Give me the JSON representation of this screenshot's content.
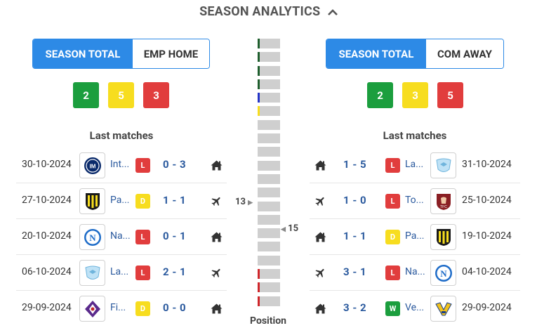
{
  "header": {
    "title": "SEASON ANALYTICS",
    "chevron_icon": "chevron-up-icon"
  },
  "home": {
    "toggle": {
      "active": "SEASON TOTAL",
      "inactive": "EMP HOME"
    },
    "stats": {
      "wins": "2",
      "draws": "5",
      "losses": "3"
    },
    "last_matches_title": "Last matches",
    "matches": [
      {
        "date": "30-10-2024",
        "team": "Int...",
        "logo": "inter-logo",
        "result": "L",
        "score": "0 - 3",
        "venue": "home-icon"
      },
      {
        "date": "27-10-2024",
        "team": "Pa...",
        "logo": "parma-logo",
        "result": "D",
        "score": "1 - 1",
        "venue": "plane-icon"
      },
      {
        "date": "20-10-2024",
        "team": "Na...",
        "logo": "napoli-logo",
        "result": "L",
        "score": "0 - 1",
        "venue": "home-icon"
      },
      {
        "date": "06-10-2024",
        "team": "La...",
        "logo": "lazio-logo",
        "result": "L",
        "score": "2 - 1",
        "venue": "plane-icon"
      },
      {
        "date": "29-09-2024",
        "team": "Fi...",
        "logo": "fiorentina-logo",
        "result": "D",
        "score": "0 - 0",
        "venue": "home-icon"
      }
    ]
  },
  "away": {
    "toggle": {
      "active": "SEASON TOTAL",
      "inactive": "COM AWAY"
    },
    "stats": {
      "wins": "2",
      "draws": "3",
      "losses": "5"
    },
    "last_matches_title": "Last matches",
    "matches": [
      {
        "date": "31-10-2024",
        "team": "La...",
        "logo": "lazio-logo",
        "result": "L",
        "score": "1 - 5",
        "venue": "home-icon"
      },
      {
        "date": "25-10-2024",
        "team": "To...",
        "logo": "torino-logo",
        "result": "L",
        "score": "1 - 0",
        "venue": "plane-icon"
      },
      {
        "date": "19-10-2024",
        "team": "Pa...",
        "logo": "parma-logo",
        "result": "D",
        "score": "1 - 1",
        "venue": "home-icon"
      },
      {
        "date": "04-10-2024",
        "team": "Na...",
        "logo": "napoli-logo",
        "result": "L",
        "score": "3 - 1",
        "venue": "plane-icon"
      },
      {
        "date": "29-09-2024",
        "team": "Ve...",
        "logo": "verona-logo",
        "result": "W",
        "score": "3 - 2",
        "venue": "home-icon"
      }
    ]
  },
  "position": {
    "label": "Position",
    "home_position": "13",
    "away_position": "15",
    "total_rows": 20,
    "zone_marks": {
      "0": "#1f5f2e",
      "1": "#1f5f2e",
      "2": "#1f5f2e",
      "3": "#1f5f2e",
      "4": "#2434c8",
      "5": "#f7dd1f",
      "17": "#d0262b",
      "18": "#d0262b",
      "19": "#d0262b"
    }
  },
  "colors": {
    "accent": "#2d8ae6",
    "win": "#1b9e3e",
    "draw": "#f7dd1f",
    "loss": "#e13d3d",
    "link": "#2b5a9e"
  }
}
